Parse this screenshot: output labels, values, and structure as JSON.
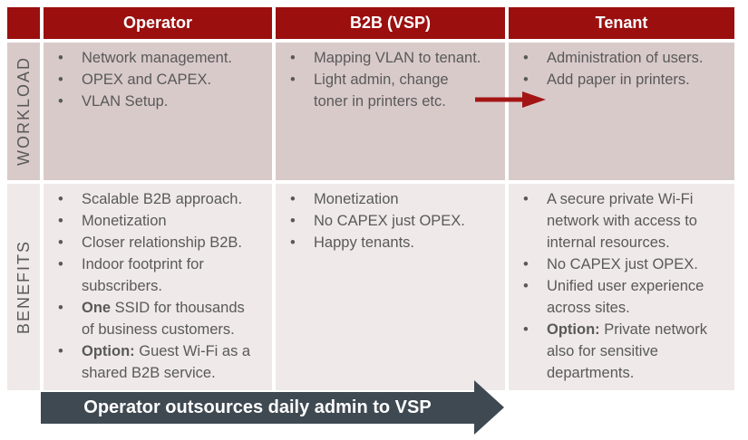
{
  "colors": {
    "header_bg": "#9B0F0F",
    "header_text": "#FFFFFF",
    "workload_row_bg": "#D9CACA",
    "benefits_row_bg": "#F0E9E9",
    "body_text": "#595959",
    "red_arrow": "#A31515",
    "bottom_arrow_bg": "#3F4952",
    "bottom_arrow_text": "#FFFFFF"
  },
  "table": {
    "columns": [
      {
        "id": "operator",
        "label": "Operator"
      },
      {
        "id": "b2b",
        "label": "B2B (VSP)"
      },
      {
        "id": "tenant",
        "label": "Tenant"
      }
    ],
    "rows": [
      {
        "id": "workload",
        "label": "WORKLOAD",
        "cells": {
          "operator": [
            [
              {
                "text": "Network management."
              }
            ],
            [
              {
                "text": "OPEX and CAPEX."
              }
            ],
            [
              {
                "text": "VLAN Setup."
              }
            ]
          ],
          "b2b": [
            [
              {
                "text": "Mapping VLAN to tenant."
              }
            ],
            [
              {
                "text": "Light admin, change\ntoner in printers etc."
              }
            ]
          ],
          "tenant": [
            [
              {
                "text": "Administration of users."
              }
            ],
            [
              {
                "text": "Add paper in printers."
              }
            ]
          ]
        }
      },
      {
        "id": "benefits",
        "label": "BENEFITS",
        "cells": {
          "operator": [
            [
              {
                "text": "Scalable B2B approach."
              }
            ],
            [
              {
                "text": "Monetization"
              }
            ],
            [
              {
                "text": "Closer relationship B2B."
              }
            ],
            [
              {
                "text": "Indoor footprint for\nsubscribers."
              }
            ],
            [
              {
                "text": "One",
                "bold": true
              },
              {
                "text": " SSID for thousands\nof business customers."
              }
            ],
            [
              {
                "text": "Option:",
                "bold": true
              },
              {
                "text": " Guest Wi-Fi as a\nshared B2B service."
              }
            ]
          ],
          "b2b": [
            [
              {
                "text": "Monetization"
              }
            ],
            [
              {
                "text": "No CAPEX just OPEX."
              }
            ],
            [
              {
                "text": "Happy tenants."
              }
            ]
          ],
          "tenant": [
            [
              {
                "text": "A secure private Wi-Fi\nnetwork with access to\ninternal resources."
              }
            ],
            [
              {
                "text": "No CAPEX just OPEX."
              }
            ],
            [
              {
                "text": "Unified user experience\nacross sites."
              }
            ],
            [
              {
                "text": "Option:",
                "bold": true
              },
              {
                "text": " Private network\nalso for sensitive\ndepartments."
              }
            ]
          ]
        }
      }
    ]
  },
  "annotations": {
    "handover_arrow": {
      "meaning": "B2B workload handed to Tenant"
    },
    "bottom_arrow": {
      "label": "Operator outsources daily admin to VSP"
    }
  }
}
